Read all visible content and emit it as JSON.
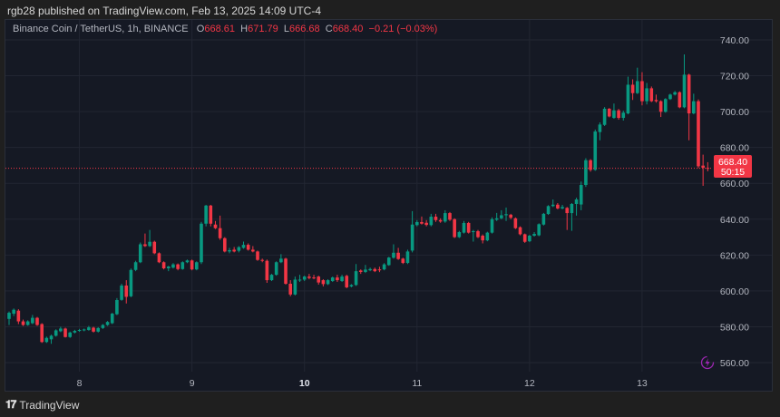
{
  "published": "rgb28 published on TradingView.com, Feb 13, 2025 14:09 UTC-4",
  "legend": {
    "symbol": "Binance Coin / TetherUS, 1h, BINANCE",
    "open_label": "O",
    "open": "668.61",
    "high_label": "H",
    "high": "671.79",
    "low_label": "L",
    "low": "666.68",
    "close_label": "C",
    "close": "668.40",
    "change": "−0.21 (−0.03%)"
  },
  "last_price_tag": {
    "price": "668.40",
    "countdown": "50:15"
  },
  "footer": {
    "logo_mark": "TV",
    "brand": "TradingView"
  },
  "colors": {
    "up": "#089981",
    "down": "#f23645",
    "background": "#151924",
    "grid": "#222632",
    "alert_icon": "#9c27b0"
  },
  "chart_data": {
    "type": "candlestick",
    "interval": "1h",
    "first_candle": "2025-02-07 09:00",
    "ylim": [
      553,
      745
    ],
    "yticks": [
      "740.00",
      "720.00",
      "700.00",
      "680.00",
      "660.00",
      "640.00",
      "620.00",
      "600.00",
      "580.00",
      "560.00"
    ],
    "xticks": [
      {
        "label": "8",
        "index": 15
      },
      {
        "label": "9",
        "index": 39
      },
      {
        "label": "10",
        "index": 63
      },
      {
        "label": "11",
        "index": 87
      },
      {
        "label": "12",
        "index": 111
      },
      {
        "label": "13",
        "index": 135
      }
    ],
    "grid": true,
    "last_price_line": 668.4,
    "ohlc": [
      [
        584.4,
        588.5,
        581,
        587.8
      ],
      [
        587.3,
        590.2,
        586,
        589.5
      ],
      [
        589,
        589.8,
        581.5,
        583
      ],
      [
        583,
        584,
        580.5,
        581
      ],
      [
        581,
        583.6,
        580.6,
        583
      ],
      [
        582,
        586.6,
        581.5,
        585
      ],
      [
        585,
        585.5,
        580.5,
        581
      ],
      [
        581.5,
        582,
        571,
        571.5
      ],
      [
        571.5,
        574.5,
        571,
        573.8
      ],
      [
        573,
        575.6,
        570.5,
        575
      ],
      [
        575,
        578.6,
        574.5,
        578
      ],
      [
        577.5,
        580,
        577,
        579
      ],
      [
        579,
        579.5,
        574,
        574.3
      ],
      [
        574.3,
        577.3,
        573.8,
        576.8
      ],
      [
        576.8,
        578.3,
        576.3,
        577.7
      ],
      [
        577.7,
        578.8,
        577.2,
        578.2
      ],
      [
        578,
        579,
        577.5,
        578.5
      ],
      [
        578.2,
        580.5,
        577.8,
        579.7
      ],
      [
        579.5,
        580,
        576.8,
        577.3
      ],
      [
        577.3,
        579.8,
        576.8,
        579.3
      ],
      [
        579.3,
        581.5,
        578.8,
        581
      ],
      [
        581,
        583.2,
        580.5,
        582.7
      ],
      [
        582,
        587.8,
        581.5,
        587.3
      ],
      [
        587,
        596,
        586.5,
        594.9
      ],
      [
        595,
        604,
        594.5,
        603
      ],
      [
        603,
        606,
        593,
        596.7
      ],
      [
        597,
        612.5,
        596.5,
        611.7
      ],
      [
        611.7,
        616.8,
        611,
        616
      ],
      [
        616,
        627,
        615.5,
        626
      ],
      [
        626,
        632,
        624.5,
        625
      ],
      [
        625,
        634,
        624.5,
        627.4
      ],
      [
        627.4,
        628,
        620.5,
        621
      ],
      [
        621,
        621.5,
        615.5,
        616
      ],
      [
        616,
        616.5,
        612,
        612.6
      ],
      [
        612.6,
        614,
        611,
        613.6
      ],
      [
        613,
        615.5,
        612.5,
        614.8
      ],
      [
        614.8,
        615.3,
        611.5,
        612.2
      ],
      [
        612.2,
        616.5,
        611.8,
        616
      ],
      [
        616,
        617.5,
        615.5,
        617
      ],
      [
        617,
        617.5,
        611.5,
        612
      ],
      [
        612,
        616.5,
        611.5,
        616
      ],
      [
        616,
        638.5,
        615,
        637.5
      ],
      [
        637.5,
        648,
        636,
        647.6
      ],
      [
        647.6,
        648,
        636,
        637.5
      ],
      [
        637,
        639,
        634.5,
        635
      ],
      [
        635,
        642,
        628.5,
        629.4
      ],
      [
        629.4,
        630,
        621.5,
        622
      ],
      [
        622,
        624,
        621,
        622.7
      ],
      [
        623,
        624.5,
        621.5,
        622
      ],
      [
        622.4,
        625,
        621.5,
        624.4
      ],
      [
        624,
        627.5,
        623.5,
        625.7
      ],
      [
        625.7,
        626.5,
        622.5,
        623
      ],
      [
        623,
        625,
        621.5,
        622
      ],
      [
        622,
        622.5,
        616.8,
        617.3
      ],
      [
        617.3,
        618,
        616,
        616.8
      ],
      [
        616.8,
        617.5,
        604.5,
        606
      ],
      [
        606,
        609.5,
        605.5,
        609
      ],
      [
        609,
        616.5,
        608.5,
        616
      ],
      [
        616,
        620.5,
        615.5,
        618
      ],
      [
        618,
        618.5,
        603.5,
        604
      ],
      [
        604,
        606,
        597,
        598
      ],
      [
        598,
        608,
        597.5,
        606.3
      ],
      [
        605.8,
        609,
        605,
        606.3
      ],
      [
        606.3,
        608.5,
        605.5,
        608
      ],
      [
        608,
        609.5,
        606.5,
        607.2
      ],
      [
        607.5,
        609,
        606.5,
        607
      ],
      [
        608,
        608.5,
        603.5,
        604.7
      ],
      [
        606,
        606.5,
        602.5,
        603.8
      ],
      [
        603.8,
        606.5,
        603.3,
        606
      ],
      [
        605.5,
        608,
        605,
        607.5
      ],
      [
        607.5,
        609,
        605,
        606
      ],
      [
        605.5,
        609,
        605,
        608
      ],
      [
        608.4,
        609,
        601.5,
        602
      ],
      [
        602.5,
        603.8,
        602,
        603.3
      ],
      [
        603.3,
        615,
        602.8,
        611
      ],
      [
        611.4,
        612,
        609.5,
        610.6
      ],
      [
        610.6,
        614.5,
        610,
        611.9
      ],
      [
        611.5,
        613,
        611,
        612.2
      ],
      [
        612.2,
        613,
        610.5,
        611
      ],
      [
        612,
        613.5,
        610.5,
        611.5
      ],
      [
        612,
        615.5,
        611.5,
        614.8
      ],
      [
        614.4,
        619,
        614,
        618.6
      ],
      [
        618.5,
        626,
        618,
        621.3
      ],
      [
        621.3,
        624,
        617.3,
        617.8
      ],
      [
        618,
        618.5,
        615,
        615.6
      ],
      [
        615.6,
        623,
        615,
        622
      ],
      [
        622.5,
        644.5,
        621.5,
        637
      ],
      [
        636.7,
        639.5,
        636,
        638.4
      ],
      [
        638.4,
        641.5,
        637,
        637.5
      ],
      [
        638,
        639.5,
        636,
        636.8
      ],
      [
        636.7,
        643,
        636,
        641.4
      ],
      [
        641.4,
        643,
        638.5,
        639.5
      ],
      [
        639.5,
        640.5,
        638,
        638.7
      ],
      [
        638.7,
        645,
        638,
        643.4
      ],
      [
        643.4,
        644,
        639,
        639.7
      ],
      [
        640,
        640.5,
        629.5,
        630
      ],
      [
        630,
        633.5,
        629.5,
        632.8
      ],
      [
        632.5,
        639,
        632,
        637.9
      ],
      [
        637.9,
        638.5,
        632,
        632.5
      ],
      [
        633,
        634,
        627.5,
        633.3
      ],
      [
        633.3,
        634,
        629.5,
        630
      ],
      [
        630.8,
        631.5,
        626.5,
        628.2
      ],
      [
        628.2,
        633,
        627.7,
        632.5
      ],
      [
        632.5,
        641,
        632,
        640
      ],
      [
        639.7,
        643.5,
        639,
        640.5
      ],
      [
        640.5,
        645,
        640,
        642.2
      ],
      [
        642.2,
        646.5,
        639,
        642.8
      ],
      [
        642.5,
        643,
        640,
        640.8
      ],
      [
        640.5,
        641,
        634.5,
        635
      ],
      [
        635.5,
        636,
        631,
        631.6
      ],
      [
        631.6,
        632,
        626.8,
        627.4
      ],
      [
        627.7,
        631.3,
        627.2,
        630.8
      ],
      [
        630.8,
        632.8,
        630.3,
        631.8
      ],
      [
        631,
        637.7,
        630.5,
        637.2
      ],
      [
        637,
        643.5,
        636.5,
        643
      ],
      [
        642.9,
        647.8,
        642.4,
        647.3
      ],
      [
        647.3,
        651,
        646.8,
        648.1
      ],
      [
        648.1,
        649,
        645.5,
        646
      ],
      [
        646,
        648,
        645.5,
        646.8
      ],
      [
        646.3,
        646.8,
        634,
        643.4
      ],
      [
        643.4,
        649,
        633.5,
        648.5
      ],
      [
        648.5,
        652,
        642,
        651
      ],
      [
        648.2,
        661,
        645,
        659.1
      ],
      [
        659.1,
        674,
        658,
        672.9
      ],
      [
        672.9,
        673.5,
        666.5,
        667.5
      ],
      [
        667.5,
        690,
        667,
        688.9
      ],
      [
        688.6,
        694,
        684,
        692.8
      ],
      [
        692.6,
        702.5,
        692,
        701.6
      ],
      [
        701.6,
        702,
        696.8,
        697.3
      ],
      [
        696.5,
        704.5,
        696,
        700.7
      ],
      [
        700.7,
        701.5,
        695.5,
        696.5
      ],
      [
        696.5,
        700.5,
        695,
        699.4
      ],
      [
        699,
        719.5,
        698.5,
        715
      ],
      [
        715,
        718,
        706.5,
        710.3
      ],
      [
        710.3,
        724.5,
        709.8,
        717
      ],
      [
        717,
        722,
        703.5,
        705.8
      ],
      [
        705.8,
        716,
        704,
        713
      ],
      [
        713,
        714,
        705.3,
        705.8
      ],
      [
        706.5,
        709.5,
        705,
        705.8
      ],
      [
        705.8,
        706.3,
        697,
        699.9
      ],
      [
        699.9,
        707.5,
        699.4,
        707
      ],
      [
        707,
        710,
        706.5,
        709.5
      ],
      [
        709.5,
        711.5,
        709,
        710.8
      ],
      [
        710.8,
        711.3,
        701.9,
        702.4
      ],
      [
        702.4,
        731.9,
        701.9,
        720.6
      ],
      [
        720.6,
        721.1,
        684,
        699
      ],
      [
        699,
        710,
        698.5,
        705.8
      ],
      [
        705.8,
        706.8,
        668.5,
        669.5
      ],
      [
        669.9,
        676,
        658.6,
        668.7
      ],
      [
        668.61,
        671.79,
        666.68,
        668.4
      ]
    ]
  }
}
